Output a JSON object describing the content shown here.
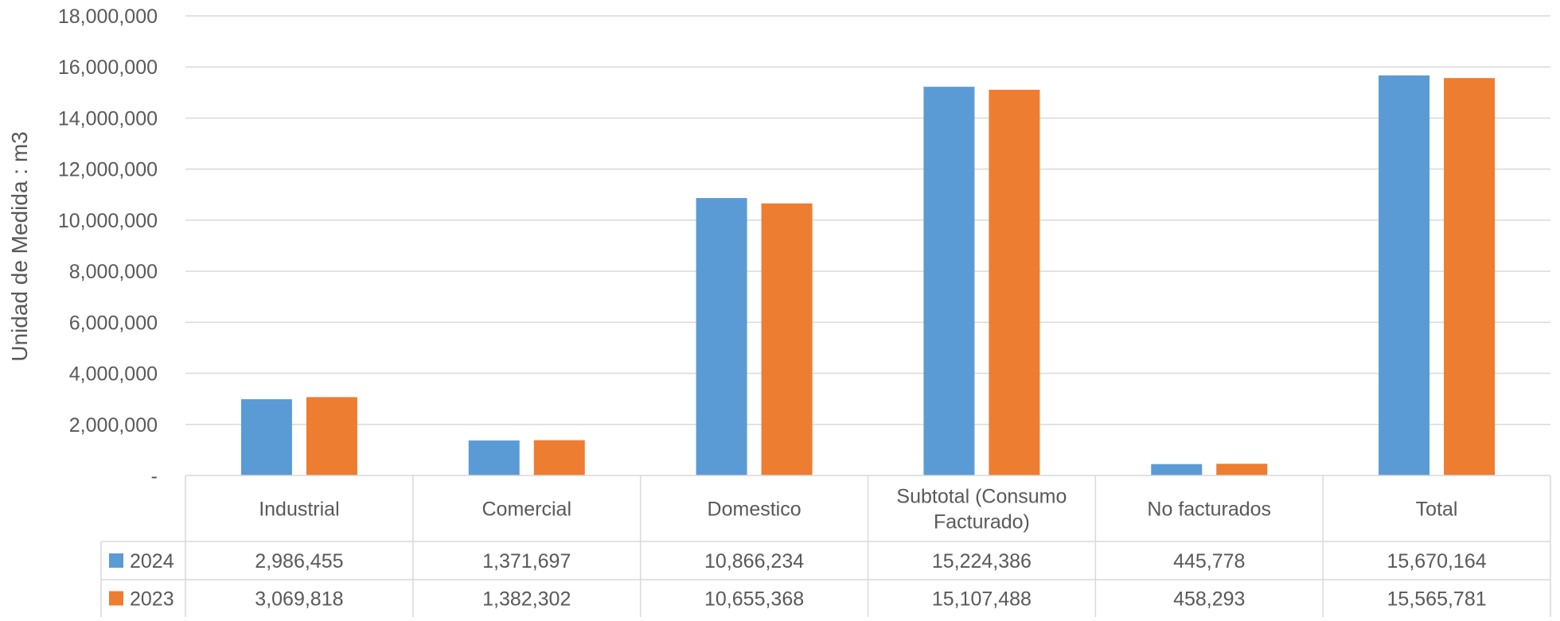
{
  "chart_data": {
    "type": "bar",
    "title": "",
    "xlabel": "",
    "ylabel": "Unidad de Medida : m3",
    "ylim": [
      0,
      18000000
    ],
    "ytick_step": 2000000,
    "ytick_labels": [
      "-",
      "2,000,000",
      "4,000,000",
      "6,000,000",
      "8,000,000",
      "10,000,000",
      "12,000,000",
      "14,000,000",
      "16,000,000",
      "18,000,000"
    ],
    "grid": true,
    "legend": "data-table",
    "categories": [
      "Industrial",
      "Comercial",
      "Domestico",
      "Subtotal (Consumo Facturado)",
      "No facturados",
      "Total"
    ],
    "category_lines": [
      [
        "Industrial"
      ],
      [
        "Comercial"
      ],
      [
        "Domestico"
      ],
      [
        "Subtotal (Consumo",
        "Facturado)"
      ],
      [
        "No facturados"
      ],
      [
        "Total"
      ]
    ],
    "series": [
      {
        "name": "2024",
        "color": "#5B9BD5",
        "values": [
          2986455,
          1371697,
          10866234,
          15224386,
          445778,
          15670164
        ],
        "labels": [
          "2,986,455",
          "1,371,697",
          "10,866,234",
          "15,224,386",
          "445,778",
          "15,670,164"
        ]
      },
      {
        "name": "2023",
        "color": "#ED7D31",
        "values": [
          3069818,
          1382302,
          10655368,
          15107488,
          458293,
          15565781
        ],
        "labels": [
          "3,069,818",
          "1,382,302",
          "10,655,368",
          "15,107,488",
          "458,293",
          "15,565,781"
        ]
      }
    ]
  }
}
